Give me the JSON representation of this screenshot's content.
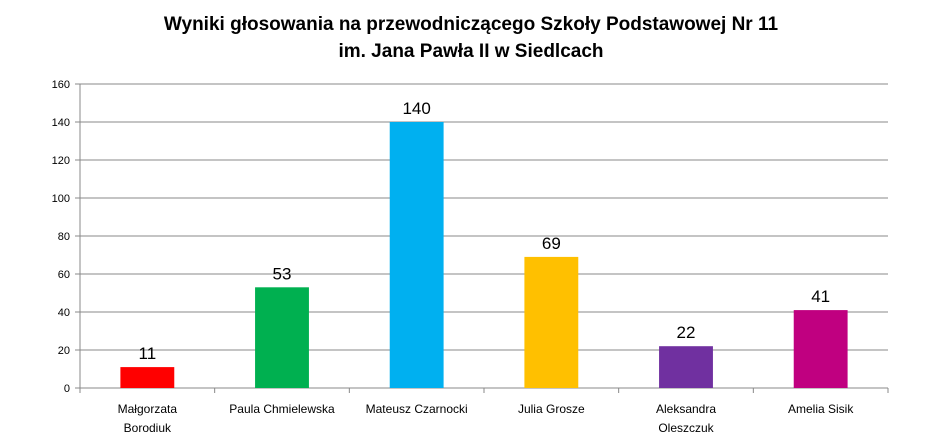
{
  "chart_data": {
    "type": "bar",
    "title": [
      "Wyniki głosowania na przewodniczącego Szkoły Podstawowej Nr 11",
      "im. Jana Pawła II w Siedlcach"
    ],
    "categories": [
      [
        "Małgorzata",
        "Borodiuk"
      ],
      [
        "Paula Chmielewska"
      ],
      [
        "Mateusz Czarnocki"
      ],
      [
        "Julia Grosze"
      ],
      [
        "Aleksandra",
        "Oleszczuk"
      ],
      [
        "Amelia Sisik"
      ]
    ],
    "values": [
      11,
      53,
      140,
      69,
      22,
      41
    ],
    "colors": [
      "#ff0000",
      "#00b050",
      "#00b0f0",
      "#ffc000",
      "#7030a0",
      "#c00080"
    ],
    "ylim": [
      0,
      160
    ],
    "yticks": [
      0,
      20,
      40,
      60,
      80,
      100,
      120,
      140,
      160
    ],
    "grid": true,
    "data_labels": true,
    "legend": "none"
  }
}
